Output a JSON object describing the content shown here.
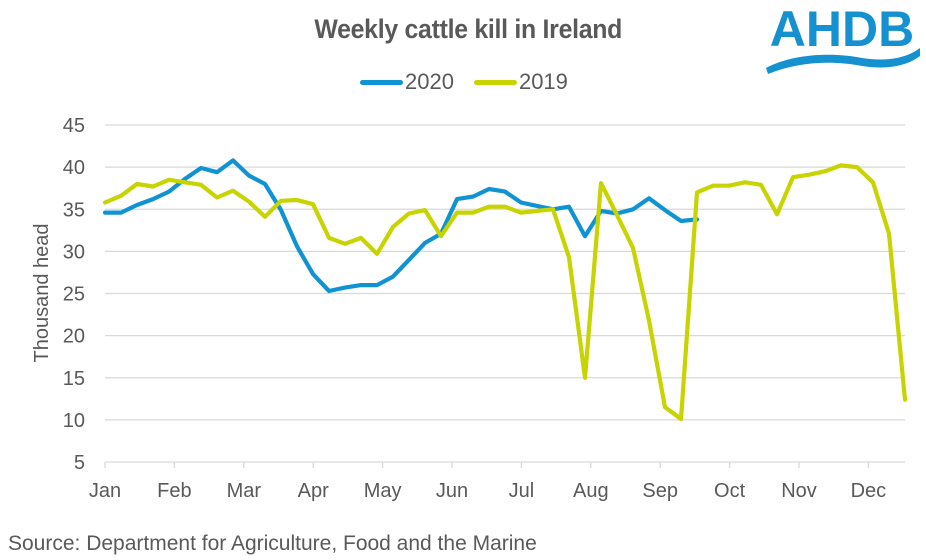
{
  "logo": {
    "text": "AHDB",
    "color": "#1591D0"
  },
  "source": "Source: Department for Agriculture, Food and the Marine",
  "chart_data": {
    "type": "line",
    "title": "Weekly cattle kill in Ireland",
    "xlabel": "",
    "ylabel": "Thousand head",
    "ylim": [
      5,
      45
    ],
    "yticks": [
      5,
      10,
      15,
      20,
      25,
      30,
      35,
      40,
      45
    ],
    "xtick_labels": [
      "Jan",
      "Feb",
      "Mar",
      "Apr",
      "May",
      "Jun",
      "Jul",
      "Aug",
      "Sep",
      "Oct",
      "Nov",
      "Dec"
    ],
    "x_unit": "week of year (1-52)",
    "grid": true,
    "legend_position": "top-center",
    "series": [
      {
        "name": "2020",
        "color": "#0F93D2",
        "values": [
          34.6,
          34.6,
          35.5,
          36.2,
          37.1,
          38.6,
          39.9,
          39.4,
          40.8,
          39.0,
          38.0,
          34.9,
          30.6,
          27.3,
          25.3,
          25.7,
          26.0,
          26.0,
          27.0,
          29.0,
          31.0,
          32.1,
          36.2,
          36.5,
          37.4,
          37.1,
          35.8,
          35.4,
          35.0,
          35.3,
          31.8,
          34.8,
          34.5,
          35.0,
          36.3,
          34.9,
          33.6,
          33.8
        ]
      },
      {
        "name": "2019",
        "color": "#C8D400",
        "values": [
          35.8,
          36.6,
          38.0,
          37.7,
          38.5,
          38.2,
          37.9,
          36.4,
          37.2,
          35.9,
          34.1,
          36.0,
          36.1,
          35.6,
          31.6,
          30.9,
          31.6,
          29.7,
          32.9,
          34.5,
          34.9,
          31.8,
          34.6,
          34.6,
          35.3,
          35.3,
          34.6,
          34.8,
          35.0,
          29.3,
          15.0,
          38.1,
          34.3,
          30.4,
          21.8,
          11.5,
          10.1,
          37.0,
          37.8,
          37.8,
          38.2,
          37.9,
          34.4,
          38.8,
          39.1,
          39.5,
          40.2,
          40.0,
          38.2,
          32.1,
          12.4
        ]
      }
    ]
  }
}
